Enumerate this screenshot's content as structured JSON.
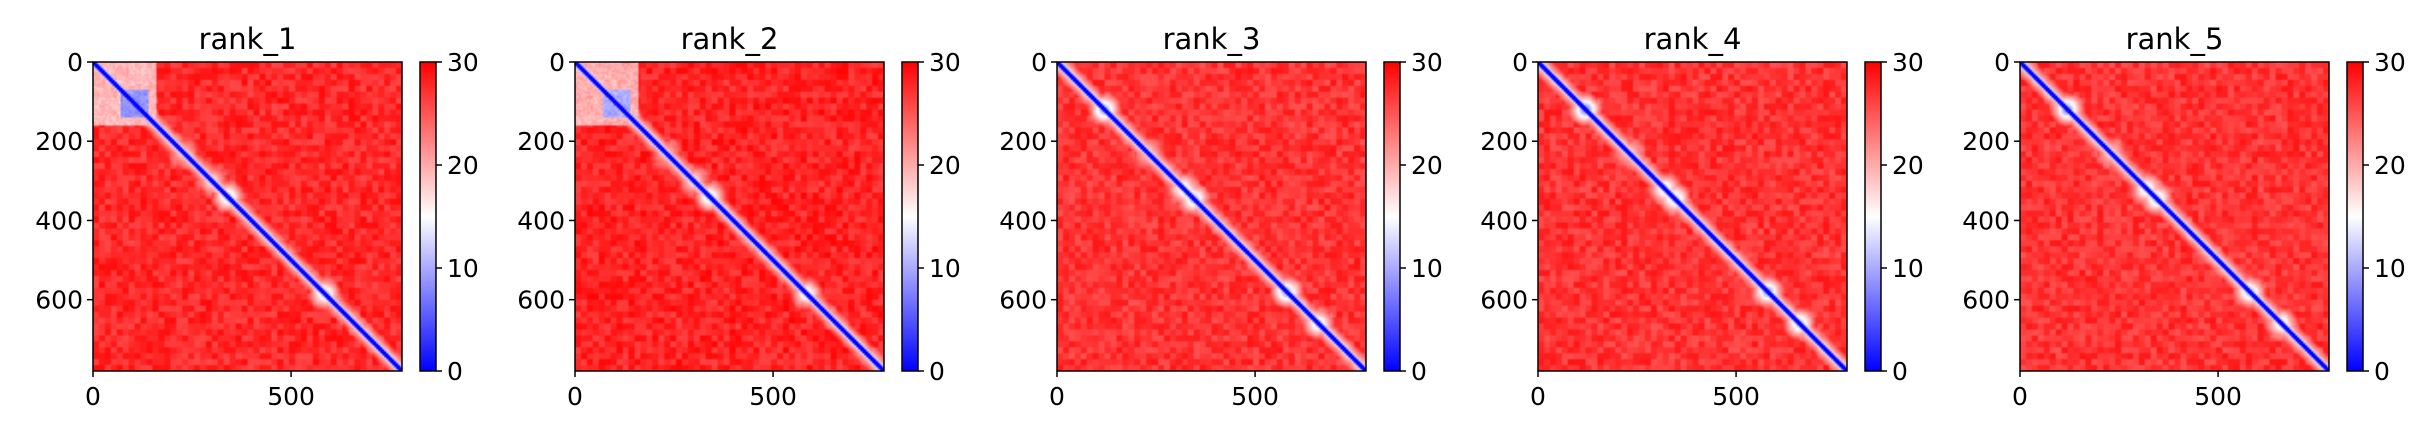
{
  "chart_data": [
    {
      "type": "heatmap",
      "title": "rank_1",
      "xlim": [
        0,
        780
      ],
      "ylim": [
        780,
        0
      ],
      "xticks": [
        0,
        500
      ],
      "xtick_labels": [
        "0",
        "500"
      ],
      "yticks": [
        0,
        200,
        400,
        600
      ],
      "ytick_labels": [
        "0",
        "200",
        "400",
        "600"
      ],
      "colorbar": {
        "range": [
          0,
          30
        ],
        "ticks": [
          0,
          10,
          20,
          30
        ],
        "tick_labels": [
          "0",
          "10",
          "20",
          "30"
        ],
        "colormap": "bwr"
      },
      "features": {
        "blocks": [
          {
            "from": 70,
            "to": 140,
            "level": 0.25
          },
          {
            "from": 0,
            "to": 160,
            "level": 0.6
          }
        ],
        "blobs": [
          {
            "at": 120,
            "level": 0.3
          },
          {
            "at": 230,
            "level": 0.55
          },
          {
            "at": 300,
            "level": 0.5
          },
          {
            "at": 340,
            "level": 0.3
          },
          {
            "at": 585,
            "level": 0.3
          }
        ],
        "background_level": 0.92
      }
    },
    {
      "type": "heatmap",
      "title": "rank_2",
      "xlim": [
        0,
        780
      ],
      "ylim": [
        780,
        0
      ],
      "xticks": [
        0,
        500
      ],
      "xtick_labels": [
        "0",
        "500"
      ],
      "yticks": [
        0,
        200,
        400,
        600
      ],
      "ytick_labels": [
        "0",
        "200",
        "400",
        "600"
      ],
      "colorbar": {
        "range": [
          0,
          30
        ],
        "ticks": [
          0,
          10,
          20,
          30
        ],
        "tick_labels": [
          "0",
          "10",
          "20",
          "30"
        ],
        "colormap": "bwr"
      },
      "features": {
        "blocks": [
          {
            "from": 70,
            "to": 140,
            "level": 0.3
          },
          {
            "from": 0,
            "to": 160,
            "level": 0.62
          }
        ],
        "blobs": [
          {
            "at": 120,
            "level": 0.3
          },
          {
            "at": 230,
            "level": 0.55
          },
          {
            "at": 300,
            "level": 0.5
          },
          {
            "at": 340,
            "level": 0.3
          },
          {
            "at": 585,
            "level": 0.35
          }
        ],
        "background_level": 0.93
      }
    },
    {
      "type": "heatmap",
      "title": "rank_3",
      "xlim": [
        0,
        780
      ],
      "ylim": [
        780,
        0
      ],
      "xticks": [
        0,
        500
      ],
      "xtick_labels": [
        "0",
        "500"
      ],
      "yticks": [
        0,
        200,
        400,
        600
      ],
      "ytick_labels": [
        "0",
        "200",
        "400",
        "600"
      ],
      "colorbar": {
        "range": [
          0,
          30
        ],
        "ticks": [
          0,
          10,
          20,
          30
        ],
        "tick_labels": [
          "0",
          "10",
          "20",
          "30"
        ],
        "colormap": "bwr"
      },
      "features": {
        "blocks": [],
        "blobs": [
          {
            "at": 120,
            "level": 0.25
          },
          {
            "at": 230,
            "level": 0.55
          },
          {
            "at": 320,
            "level": 0.35
          },
          {
            "at": 345,
            "level": 0.3
          },
          {
            "at": 580,
            "level": 0.25
          },
          {
            "at": 660,
            "level": 0.35
          }
        ],
        "background_level": 0.9
      }
    },
    {
      "type": "heatmap",
      "title": "rank_4",
      "xlim": [
        0,
        780
      ],
      "ylim": [
        780,
        0
      ],
      "xticks": [
        0,
        500
      ],
      "xtick_labels": [
        "0",
        "500"
      ],
      "yticks": [
        0,
        200,
        400,
        600
      ],
      "ytick_labels": [
        "0",
        "200",
        "400",
        "600"
      ],
      "colorbar": {
        "range": [
          0,
          30
        ],
        "ticks": [
          0,
          10,
          20,
          30
        ],
        "tick_labels": [
          "0",
          "10",
          "20",
          "30"
        ],
        "colormap": "bwr"
      },
      "features": {
        "blocks": [],
        "blobs": [
          {
            "at": 120,
            "level": 0.2
          },
          {
            "at": 230,
            "level": 0.55
          },
          {
            "at": 320,
            "level": 0.35
          },
          {
            "at": 345,
            "level": 0.3
          },
          {
            "at": 580,
            "level": 0.25
          },
          {
            "at": 660,
            "level": 0.3
          }
        ],
        "background_level": 0.9
      }
    },
    {
      "type": "heatmap",
      "title": "rank_5",
      "xlim": [
        0,
        780
      ],
      "ylim": [
        780,
        0
      ],
      "xticks": [
        0,
        500
      ],
      "xtick_labels": [
        "0",
        "500"
      ],
      "yticks": [
        0,
        200,
        400,
        600
      ],
      "ytick_labels": [
        "0",
        "200",
        "400",
        "600"
      ],
      "colorbar": {
        "range": [
          0,
          30
        ],
        "ticks": [
          0,
          10,
          20,
          30
        ],
        "tick_labels": [
          "0",
          "10",
          "20",
          "30"
        ],
        "colormap": "bwr"
      },
      "features": {
        "blocks": [],
        "blobs": [
          {
            "at": 120,
            "level": 0.2
          },
          {
            "at": 230,
            "level": 0.55
          },
          {
            "at": 320,
            "level": 0.35
          },
          {
            "at": 345,
            "level": 0.3
          },
          {
            "at": 580,
            "level": 0.3
          },
          {
            "at": 660,
            "level": 0.35
          }
        ],
        "background_level": 0.9
      }
    }
  ],
  "colors": {
    "low": "#0000ff",
    "mid": "#ffffff",
    "high": "#ff0000"
  }
}
